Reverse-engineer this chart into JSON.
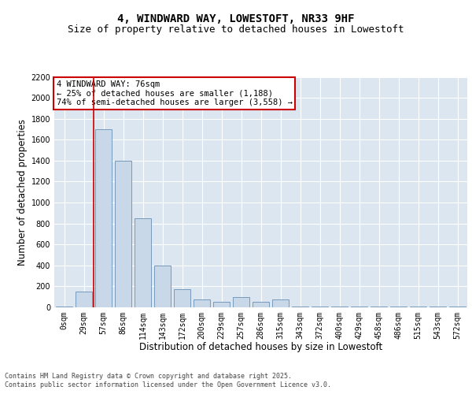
{
  "title_line1": "4, WINDWARD WAY, LOWESTOFT, NR33 9HF",
  "title_line2": "Size of property relative to detached houses in Lowestoft",
  "xlabel": "Distribution of detached houses by size in Lowestoft",
  "ylabel": "Number of detached properties",
  "categories": [
    "0sqm",
    "29sqm",
    "57sqm",
    "86sqm",
    "114sqm",
    "143sqm",
    "172sqm",
    "200sqm",
    "229sqm",
    "257sqm",
    "286sqm",
    "315sqm",
    "343sqm",
    "372sqm",
    "400sqm",
    "429sqm",
    "458sqm",
    "486sqm",
    "515sqm",
    "543sqm",
    "572sqm"
  ],
  "values": [
    10,
    150,
    1700,
    1400,
    850,
    400,
    175,
    75,
    50,
    100,
    50,
    75,
    5,
    5,
    5,
    5,
    5,
    5,
    5,
    5,
    5
  ],
  "bar_color": "#c8d8e8",
  "bar_edge_color": "#7799bb",
  "vline_color": "#cc0000",
  "annotation_text": "4 WINDWARD WAY: 76sqm\n← 25% of detached houses are smaller (1,188)\n74% of semi-detached houses are larger (3,558) →",
  "annotation_box_color": "#ffffff",
  "annotation_border_color": "#cc0000",
  "ylim": [
    0,
    2200
  ],
  "yticks": [
    0,
    200,
    400,
    600,
    800,
    1000,
    1200,
    1400,
    1600,
    1800,
    2000,
    2200
  ],
  "figure_bg": "#ffffff",
  "plot_bg_color": "#dce6f0",
  "footer_line1": "Contains HM Land Registry data © Crown copyright and database right 2025.",
  "footer_line2": "Contains public sector information licensed under the Open Government Licence v3.0.",
  "title_fontsize": 10,
  "subtitle_fontsize": 9,
  "tick_fontsize": 7,
  "label_fontsize": 8.5,
  "footer_fontsize": 6,
  "annotation_fontsize": 7.5
}
